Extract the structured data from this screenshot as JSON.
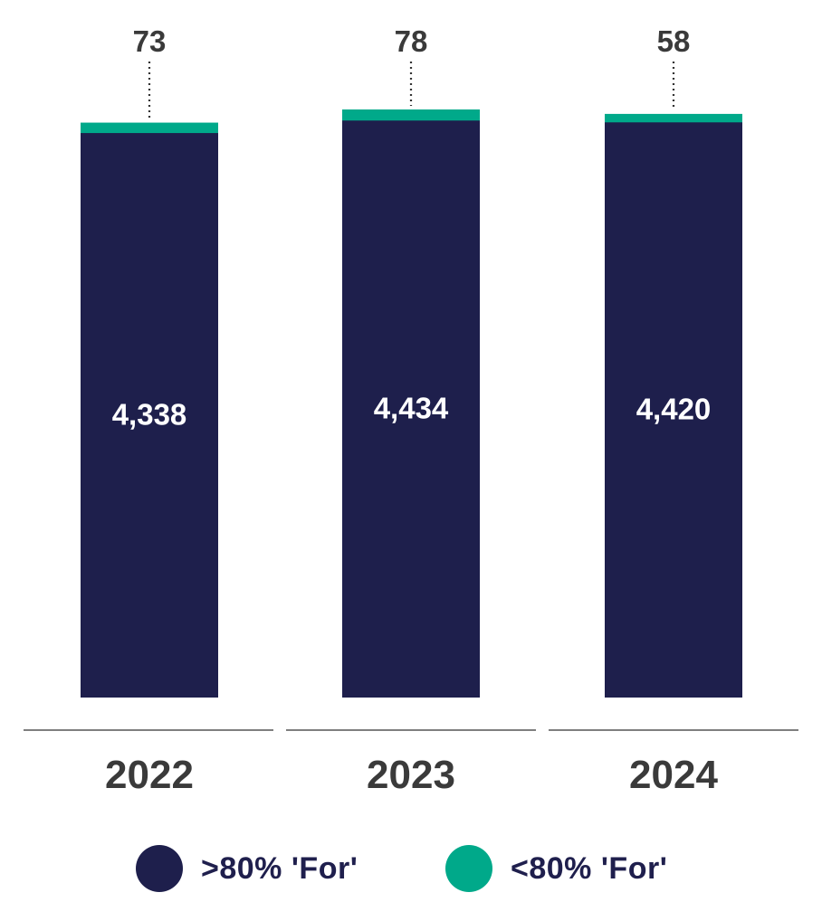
{
  "chart_data": {
    "type": "bar",
    "stacked": true,
    "categories": [
      "2022",
      "2023",
      "2024"
    ],
    "series": [
      {
        "name": ">80% 'For'",
        "values": [
          4338,
          4434,
          4420
        ],
        "color": "#1e1f4c",
        "label_position": "inside"
      },
      {
        "name": "<80% 'For'",
        "values": [
          73,
          78,
          58
        ],
        "color": "#00a98a",
        "label_position": "above"
      }
    ],
    "data_labels": {
      "series_0": [
        "4,338",
        "4,434",
        "4,420"
      ],
      "series_1": [
        "73",
        "78",
        "58"
      ]
    },
    "title": "",
    "xlabel": "",
    "ylabel": "",
    "legend_position": "bottom",
    "grid": false
  }
}
